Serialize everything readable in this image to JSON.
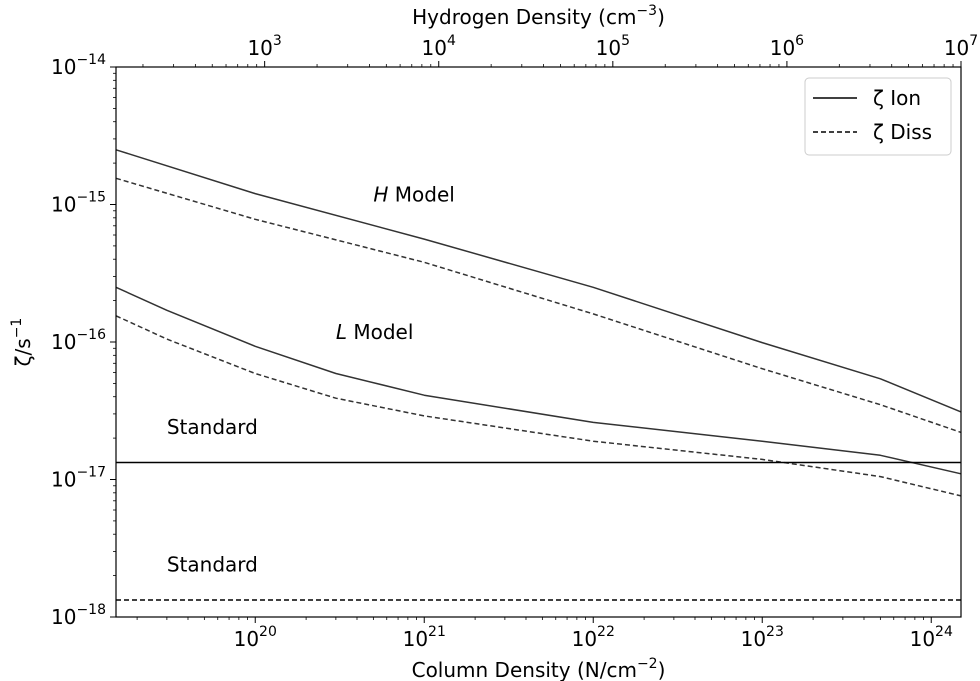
{
  "chart_data": {
    "type": "line",
    "xlabel": "Column Density (N/cm^-2)",
    "xlabel_base": "Column Density (N/cm",
    "xlabel_exp": "−2",
    "xlabel_tail": ")",
    "top_xlabel": "Hydrogen Density (cm^-3)",
    "top_xlabel_base": "Hydrogen Density (cm",
    "top_xlabel_exp": "−3",
    "top_xlabel_tail": ")",
    "ylabel": "ζ/s^-1",
    "ylabel_base": "ζ/s",
    "ylabel_exp": "−1",
    "x_scale": "log",
    "y_scale": "log",
    "xlim": [
      1.5e+19,
      1.5e+24
    ],
    "ylim": [
      1e-18,
      1e-14
    ],
    "top_xlim": [
      140.0,
      10000000.0
    ],
    "x_ticks": [
      {
        "value": 1e+20,
        "base": "10",
        "exp": "20"
      },
      {
        "value": 1e+21,
        "base": "10",
        "exp": "21"
      },
      {
        "value": 1e+22,
        "base": "10",
        "exp": "22"
      },
      {
        "value": 1e+23,
        "base": "10",
        "exp": "23"
      },
      {
        "value": 1e+24,
        "base": "10",
        "exp": "24"
      }
    ],
    "top_x_ticks": [
      {
        "value": 1000.0,
        "base": "10",
        "exp": "3"
      },
      {
        "value": 10000.0,
        "base": "10",
        "exp": "4"
      },
      {
        "value": 100000.0,
        "base": "10",
        "exp": "5"
      },
      {
        "value": 1000000.0,
        "base": "10",
        "exp": "6"
      },
      {
        "value": 10000000.0,
        "base": "10",
        "exp": "7"
      }
    ],
    "y_ticks": [
      {
        "value": 1e-18,
        "base": "10",
        "exp": "−18"
      },
      {
        "value": 1e-17,
        "base": "10",
        "exp": "−17"
      },
      {
        "value": 1e-16,
        "base": "10",
        "exp": "−16"
      },
      {
        "value": 1e-15,
        "base": "10",
        "exp": "−15"
      },
      {
        "value": 1e-14,
        "base": "10",
        "exp": "−14"
      }
    ],
    "legend": {
      "placement": "top-right",
      "entries": [
        {
          "label": "ζ Ion",
          "style": "solid"
        },
        {
          "label": "ζ Diss",
          "style": "dashed"
        }
      ]
    },
    "series": [
      {
        "style": "solid",
        "x": [
          1.5e+19,
          1e+20,
          1e+21,
          1e+22,
          1e+23,
          5e+23,
          1.5e+24
        ],
        "y": [
          2.5e-15,
          1.2e-15,
          5.6e-16,
          2.5e-16,
          9.9e-17,
          5.4e-17,
          3.1e-17
        ]
      },
      {
        "style": "dashed",
        "x": [
          1.5e+19,
          1e+20,
          1e+21,
          1e+22,
          1e+23,
          5e+23,
          1.5e+24
        ],
        "y": [
          1.55e-15,
          7.8e-16,
          3.8e-16,
          1.6e-16,
          6.4e-17,
          3.5e-17,
          2.2e-17
        ]
      },
      {
        "style": "solid",
        "x": [
          1.5e+19,
          3e+19,
          1e+20,
          3e+20,
          1e+21,
          1e+22,
          1e+23,
          5e+23,
          1.5e+24
        ],
        "y": [
          2.5e-16,
          1.7e-16,
          9.3e-17,
          5.9e-17,
          4.1e-17,
          2.6e-17,
          1.9e-17,
          1.5e-17,
          1.1e-17
        ]
      },
      {
        "style": "dashed",
        "x": [
          1.5e+19,
          3e+19,
          1e+20,
          3e+20,
          1e+21,
          1e+22,
          1e+23,
          5e+23,
          1.5e+24
        ],
        "y": [
          1.55e-16,
          1.05e-16,
          5.9e-17,
          3.9e-17,
          2.9e-17,
          1.9e-17,
          1.4e-17,
          1.05e-17,
          7.6e-18
        ]
      },
      {
        "style": "solid",
        "x": [
          1.5e+19,
          1.5e+24
        ],
        "y": [
          1.33e-17,
          1.33e-17
        ]
      },
      {
        "style": "dashed",
        "x": [
          1.5e+19,
          1.5e+24
        ],
        "y": [
          1.33e-18,
          1.33e-18
        ]
      }
    ],
    "annotations": [
      {
        "italic": "H",
        "text": " Model",
        "x": 5e+20,
        "y": 1.05e-15
      },
      {
        "italic": "L",
        "text": " Model",
        "x": 3e+20,
        "y": 1.05e-16
      },
      {
        "italic": "",
        "text": "Standard",
        "x": 3e+19,
        "y": 2.15e-17
      },
      {
        "italic": "",
        "text": "Standard",
        "x": 3e+19,
        "y": 2.15e-18
      }
    ]
  }
}
